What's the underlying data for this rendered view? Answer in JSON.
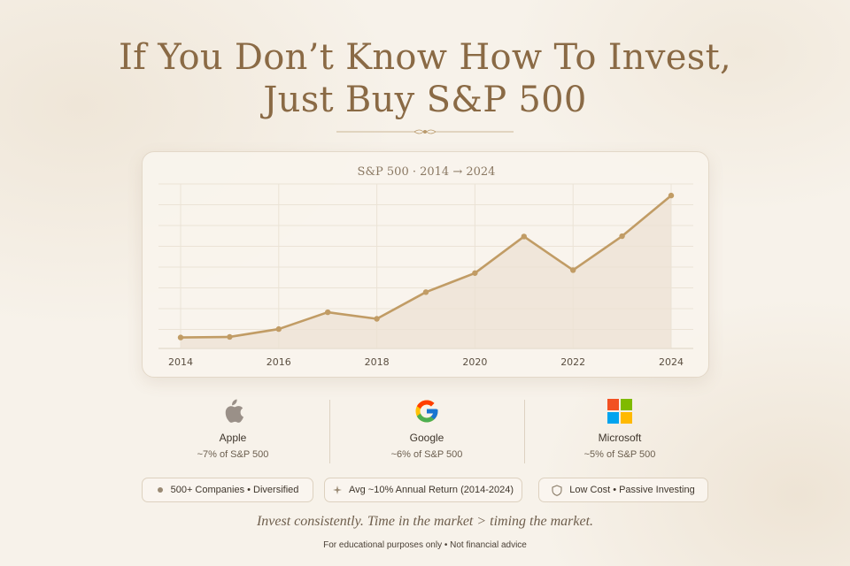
{
  "header": {
    "title_line1": "If You Don’t Know How To Invest,",
    "title_line2": "Just Buy S&P 500"
  },
  "chart_data": {
    "type": "line",
    "title": "S&P 500 · 2014 → 2024",
    "xlabel": "",
    "ylabel": "",
    "x_ticks": [
      2014,
      2016,
      2018,
      2020,
      2022,
      2024
    ],
    "x": [
      2014,
      2015,
      2016,
      2017,
      2018,
      2019,
      2020,
      2021,
      2022,
      2023,
      2024
    ],
    "values": [
      2000,
      2015,
      2230,
      2690,
      2510,
      3240,
      3760,
      4760,
      3840,
      4770,
      5880
    ],
    "xlim": [
      2014,
      2024
    ],
    "ylim": [
      1700,
      6100
    ],
    "grid": true,
    "area_fill": true,
    "line_color": "#c19c65",
    "fill_color": "#ece2d3"
  },
  "companies": [
    {
      "name": "Apple",
      "share": "~7% of S&P 500",
      "icon": "apple-icon"
    },
    {
      "name": "Google",
      "share": "~6% of S&P 500",
      "icon": "google-icon"
    },
    {
      "name": "Microsoft",
      "share": "~5% of S&P 500",
      "icon": "microsoft-icon"
    }
  ],
  "pills": [
    {
      "label": "500+ Companies • Diversified",
      "icon": "dot-icon"
    },
    {
      "label": "Avg ~10% Annual Return (2014-2024)",
      "icon": "sparkle-icon"
    },
    {
      "label": "Low Cost • Passive Investing",
      "icon": "shield-icon"
    }
  ],
  "footer": {
    "tagline": "Invest consistently. Time in the market > timing the market.",
    "disclaimer": "For educational purposes only • Not financial advice"
  }
}
